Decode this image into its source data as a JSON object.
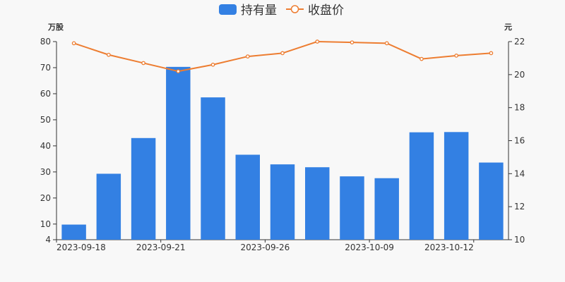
{
  "chart_data": {
    "type": "bar+line",
    "legend": {
      "placement": "top-center",
      "bar_label": "持有量",
      "line_label": "收盘价"
    },
    "x_tick_labels": [
      "2023-09-18",
      "2023-09-21",
      "2023-09-26",
      "2023-10-09",
      "2023-10-12"
    ],
    "left_axis": {
      "unit": "万股",
      "ticks": [
        4,
        10,
        20,
        30,
        40,
        50,
        60,
        70,
        80
      ],
      "ylim": [
        4,
        80
      ]
    },
    "right_axis": {
      "unit": "元",
      "ticks": [
        10,
        12,
        14,
        16,
        18,
        20,
        22
      ],
      "ylim": [
        10,
        22
      ]
    },
    "series": [
      {
        "name": "持有量",
        "kind": "bar",
        "axis": "left",
        "color": "#3380e3",
        "values": [
          9.8,
          29.3,
          43.0,
          70.3,
          58.6,
          36.6,
          32.9,
          31.8,
          28.3,
          27.6,
          45.2,
          45.3,
          33.6
        ]
      },
      {
        "name": "收盘价",
        "kind": "line",
        "axis": "right",
        "color": "#ed7d31",
        "values": [
          21.9,
          21.2,
          20.7,
          20.2,
          20.6,
          21.1,
          21.3,
          22.0,
          21.95,
          21.9,
          20.95,
          21.15,
          21.3
        ]
      }
    ],
    "grid": false
  }
}
